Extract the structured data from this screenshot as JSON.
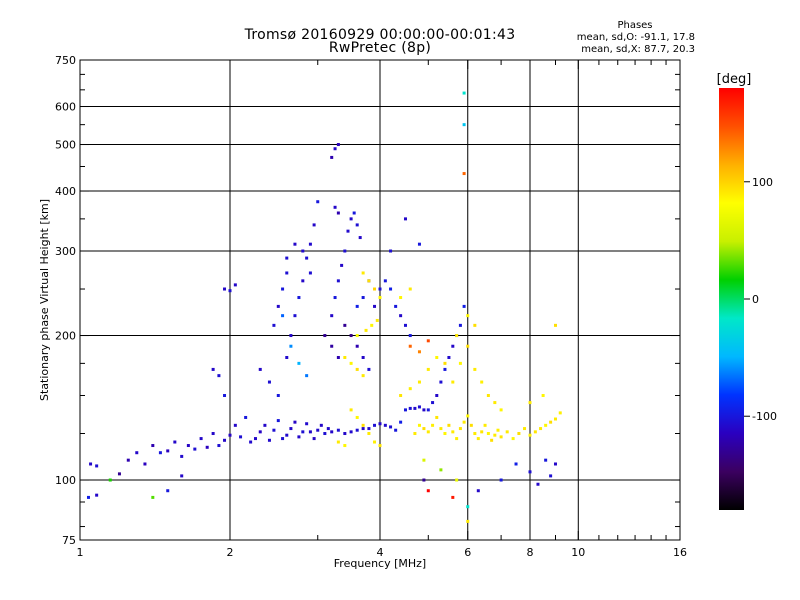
{
  "header": {
    "title_line1": "Tromsø 20160929 00:00:00-00:01:43",
    "title_line2": "RwPretec (8p)"
  },
  "stats": {
    "heading": "Phases",
    "o_line": "mean, sd,O: -91.1, 17.8",
    "x_line": "mean, sd,X: 87.7, 20.3"
  },
  "colorbar": {
    "unit": "[deg]",
    "ticks": [
      {
        "value": 100,
        "label": "100"
      },
      {
        "value": 0,
        "label": "0"
      },
      {
        "value": -100,
        "label": "-100"
      }
    ],
    "range": [
      -180,
      180
    ],
    "gradient": [
      "#000000",
      "#3b0060",
      "#2a00c0",
      "#0033ff",
      "#00b8ff",
      "#00e8c8",
      "#00d000",
      "#c8f000",
      "#ffff00",
      "#ffb000",
      "#ff5000",
      "#ff0000"
    ]
  },
  "chart_data": {
    "type": "scatter",
    "xlabel": "Frequency [MHz]",
    "ylabel": "Stationary phase Virtual Height [km]",
    "xscale": "log",
    "yscale": "log",
    "xlim": [
      1,
      16
    ],
    "ylim": [
      75,
      750
    ],
    "x_ticks": [
      1,
      2,
      4,
      6,
      8,
      10,
      16
    ],
    "x_minor_ticks": [
      3,
      5,
      7,
      9,
      11,
      12,
      13,
      14,
      15
    ],
    "y_ticks": [
      75,
      100,
      200,
      300,
      400,
      500,
      600,
      750
    ],
    "y_minor_ticks": [
      80,
      90,
      125,
      150,
      175,
      250,
      350,
      450,
      550,
      650,
      700
    ],
    "x_grid": [
      2,
      4,
      6,
      8,
      10
    ],
    "y_grid": [
      100,
      200,
      300,
      400,
      500,
      600
    ],
    "series": [
      {
        "points": [
          [
            1.05,
            108,
            -110
          ],
          [
            1.08,
            107,
            -105
          ],
          [
            1.04,
            92,
            -95
          ],
          [
            1.08,
            93,
            -110
          ],
          [
            1.2,
            103,
            -130
          ],
          [
            1.25,
            110,
            -120
          ],
          [
            1.3,
            114,
            -110
          ],
          [
            1.35,
            108,
            -115
          ],
          [
            1.4,
            118,
            -120
          ],
          [
            1.45,
            114,
            -100
          ],
          [
            1.5,
            115,
            -115
          ],
          [
            1.55,
            120,
            -110
          ],
          [
            1.6,
            112,
            -108
          ],
          [
            1.65,
            118,
            -112
          ],
          [
            1.7,
            116,
            -105
          ],
          [
            1.75,
            122,
            -110
          ],
          [
            1.8,
            117,
            -115
          ],
          [
            1.85,
            125,
            -110
          ],
          [
            1.9,
            118,
            -105
          ],
          [
            1.95,
            121,
            -110
          ],
          [
            2.0,
            124,
            -112
          ],
          [
            2.05,
            130,
            -110
          ],
          [
            2.1,
            123,
            -105
          ],
          [
            2.15,
            135,
            -100
          ],
          [
            2.2,
            120,
            -108
          ],
          [
            2.25,
            122,
            -110
          ],
          [
            2.3,
            126,
            -112
          ],
          [
            2.35,
            130,
            -110
          ],
          [
            2.4,
            121,
            -108
          ],
          [
            2.45,
            127,
            -105
          ],
          [
            2.5,
            133,
            -100
          ],
          [
            2.55,
            122,
            -105
          ],
          [
            2.6,
            124,
            -108
          ],
          [
            2.65,
            128,
            -110
          ],
          [
            2.7,
            132,
            -112
          ],
          [
            2.75,
            123,
            -110
          ],
          [
            2.8,
            126,
            -105
          ],
          [
            2.85,
            131,
            -108
          ],
          [
            2.9,
            126,
            -110
          ],
          [
            2.95,
            122,
            -112
          ],
          [
            3.0,
            127,
            -108
          ],
          [
            3.05,
            130,
            -110
          ],
          [
            3.1,
            125,
            -105
          ],
          [
            3.15,
            128,
            -108
          ],
          [
            3.2,
            126,
            -110
          ],
          [
            3.3,
            127,
            -105
          ],
          [
            3.4,
            125,
            -110
          ],
          [
            3.5,
            126,
            -108
          ],
          [
            3.6,
            127,
            -105
          ],
          [
            3.7,
            128,
            -110
          ],
          [
            3.8,
            128,
            -108
          ],
          [
            3.9,
            130,
            -105
          ],
          [
            4.0,
            131,
            -110
          ],
          [
            4.1,
            130,
            -108
          ],
          [
            4.2,
            129,
            -105
          ],
          [
            4.3,
            127,
            -100
          ],
          [
            4.4,
            132,
            -95
          ],
          [
            4.5,
            140,
            -100
          ],
          [
            4.6,
            141,
            -105
          ],
          [
            4.7,
            141,
            -108
          ],
          [
            4.8,
            142,
            -105
          ],
          [
            4.9,
            140,
            -110
          ],
          [
            5.0,
            140,
            -100
          ],
          [
            5.1,
            145,
            -105
          ],
          [
            5.2,
            150,
            -110
          ],
          [
            5.3,
            160,
            -105
          ],
          [
            5.4,
            170,
            -100
          ],
          [
            5.5,
            180,
            -108
          ],
          [
            5.6,
            190,
            -110
          ],
          [
            5.7,
            200,
            -105
          ],
          [
            5.8,
            210,
            -100
          ],
          [
            5.9,
            230,
            -95
          ],
          [
            2.3,
            170,
            -110
          ],
          [
            2.4,
            160,
            -105
          ],
          [
            2.5,
            150,
            -100
          ],
          [
            2.6,
            180,
            -108
          ],
          [
            2.45,
            210,
            -105
          ],
          [
            2.5,
            230,
            -110
          ],
          [
            2.55,
            250,
            -100
          ],
          [
            2.6,
            270,
            -105
          ],
          [
            2.65,
            200,
            -110
          ],
          [
            2.7,
            220,
            -105
          ],
          [
            2.75,
            240,
            -100
          ],
          [
            2.8,
            260,
            -110
          ],
          [
            2.85,
            290,
            -105
          ],
          [
            2.9,
            310,
            -108
          ],
          [
            2.95,
            340,
            -110
          ],
          [
            3.0,
            380,
            -100
          ],
          [
            2.6,
            290,
            -105
          ],
          [
            2.7,
            310,
            -110
          ],
          [
            2.8,
            300,
            -108
          ],
          [
            2.9,
            270,
            -105
          ],
          [
            2.55,
            220,
            -70
          ],
          [
            2.65,
            190,
            -60
          ],
          [
            2.75,
            175,
            -50
          ],
          [
            2.85,
            165,
            -65
          ],
          [
            3.2,
            220,
            -110
          ],
          [
            3.25,
            240,
            -100
          ],
          [
            3.3,
            260,
            -105
          ],
          [
            3.35,
            280,
            -110
          ],
          [
            3.4,
            300,
            -105
          ],
          [
            3.45,
            330,
            -108
          ],
          [
            3.5,
            350,
            -110
          ],
          [
            3.55,
            360,
            -100
          ],
          [
            3.6,
            340,
            -105
          ],
          [
            3.65,
            320,
            -110
          ],
          [
            3.3,
            360,
            -120
          ],
          [
            3.25,
            370,
            -110
          ],
          [
            3.2,
            470,
            -120
          ],
          [
            3.25,
            490,
            -110
          ],
          [
            3.3,
            500,
            -115
          ],
          [
            3.1,
            200,
            -130
          ],
          [
            3.2,
            190,
            -125
          ],
          [
            3.3,
            180,
            -120
          ],
          [
            3.4,
            210,
            -130
          ],
          [
            3.5,
            200,
            -135
          ],
          [
            3.6,
            190,
            -120
          ],
          [
            3.7,
            180,
            -110
          ],
          [
            3.8,
            170,
            -105
          ],
          [
            3.9,
            230,
            -110
          ],
          [
            4.0,
            250,
            -105
          ],
          [
            4.1,
            260,
            -100
          ],
          [
            4.2,
            250,
            -95
          ],
          [
            4.3,
            230,
            -100
          ],
          [
            4.4,
            220,
            -110
          ],
          [
            4.5,
            210,
            -105
          ],
          [
            4.6,
            200,
            -100
          ],
          [
            3.6,
            230,
            -95
          ],
          [
            3.7,
            240,
            -100
          ],
          [
            3.8,
            260,
            -105
          ],
          [
            1.95,
            250,
            -110
          ],
          [
            2.0,
            248,
            -105
          ],
          [
            2.05,
            255,
            -110
          ],
          [
            1.85,
            170,
            -110
          ],
          [
            1.9,
            165,
            -105
          ],
          [
            1.95,
            150,
            -100
          ],
          [
            4.5,
            350,
            -110
          ],
          [
            4.2,
            300,
            -105
          ],
          [
            4.8,
            310,
            -100
          ],
          [
            5.9,
            550,
            -40
          ],
          [
            5.9,
            640,
            -20
          ],
          [
            5.9,
            435,
            140
          ],
          [
            3.7,
            270,
            90
          ],
          [
            3.8,
            260,
            95
          ],
          [
            3.9,
            250,
            100
          ],
          [
            4.0,
            240,
            85
          ],
          [
            3.6,
            200,
            80
          ],
          [
            3.75,
            205,
            90
          ],
          [
            3.85,
            210,
            85
          ],
          [
            3.95,
            215,
            90
          ],
          [
            3.4,
            180,
            90
          ],
          [
            3.5,
            175,
            85
          ],
          [
            3.6,
            170,
            95
          ],
          [
            3.7,
            165,
            90
          ],
          [
            3.5,
            140,
            90
          ],
          [
            3.6,
            135,
            85
          ],
          [
            3.7,
            130,
            95
          ],
          [
            3.8,
            125,
            90
          ],
          [
            3.9,
            120,
            88
          ],
          [
            4.0,
            118,
            92
          ],
          [
            3.3,
            120,
            90
          ],
          [
            3.4,
            118,
            85
          ],
          [
            4.7,
            125,
            90
          ],
          [
            4.8,
            130,
            85
          ],
          [
            4.9,
            128,
            95
          ],
          [
            5.0,
            126,
            90
          ],
          [
            5.1,
            130,
            88
          ],
          [
            5.2,
            135,
            92
          ],
          [
            5.3,
            128,
            90
          ],
          [
            5.4,
            125,
            85
          ],
          [
            5.5,
            130,
            95
          ],
          [
            5.6,
            126,
            90
          ],
          [
            5.7,
            122,
            88
          ],
          [
            5.8,
            128,
            92
          ],
          [
            5.9,
            132,
            90
          ],
          [
            6.0,
            136,
            85
          ],
          [
            6.1,
            130,
            95
          ],
          [
            6.2,
            125,
            90
          ],
          [
            6.3,
            122,
            88
          ],
          [
            6.4,
            126,
            92
          ],
          [
            6.5,
            130,
            90
          ],
          [
            6.6,
            125,
            85
          ],
          [
            6.7,
            121,
            95
          ],
          [
            6.8,
            124,
            90
          ],
          [
            6.9,
            127,
            88
          ],
          [
            7.0,
            123,
            92
          ],
          [
            7.2,
            126,
            90
          ],
          [
            7.4,
            122,
            85
          ],
          [
            7.6,
            125,
            95
          ],
          [
            7.8,
            128,
            90
          ],
          [
            8.0,
            124,
            88
          ],
          [
            8.2,
            126,
            92
          ],
          [
            8.4,
            128,
            90
          ],
          [
            8.6,
            130,
            85
          ],
          [
            8.8,
            132,
            95
          ],
          [
            9.0,
            134,
            90
          ],
          [
            9.2,
            138,
            88
          ],
          [
            5.6,
            160,
            90
          ],
          [
            5.8,
            175,
            85
          ],
          [
            6.0,
            190,
            95
          ],
          [
            6.2,
            170,
            90
          ],
          [
            6.4,
            160,
            88
          ],
          [
            6.6,
            150,
            92
          ],
          [
            6.8,
            145,
            90
          ],
          [
            7.0,
            140,
            85
          ],
          [
            5.7,
            200,
            90
          ],
          [
            6.0,
            220,
            85
          ],
          [
            6.2,
            210,
            95
          ],
          [
            5.0,
            170,
            90
          ],
          [
            5.2,
            180,
            85
          ],
          [
            5.4,
            175,
            95
          ],
          [
            4.8,
            160,
            90
          ],
          [
            4.6,
            155,
            88
          ],
          [
            4.4,
            150,
            92
          ],
          [
            4.6,
            250,
            90
          ],
          [
            4.4,
            240,
            85
          ],
          [
            8.0,
            145,
            90
          ],
          [
            8.5,
            150,
            85
          ],
          [
            9.0,
            210,
            95
          ],
          [
            4.6,
            190,
            140
          ],
          [
            4.8,
            185,
            130
          ],
          [
            5.0,
            195,
            150
          ],
          [
            4.9,
            110,
            60
          ],
          [
            5.3,
            105,
            40
          ],
          [
            5.7,
            100,
            70
          ],
          [
            5.0,
            95,
            180
          ],
          [
            5.6,
            92,
            170
          ],
          [
            6.0,
            88,
            -20
          ],
          [
            6.0,
            82,
            90
          ],
          [
            1.4,
            92,
            30
          ],
          [
            4.9,
            100,
            -130
          ],
          [
            6.3,
            95,
            -110
          ],
          [
            7.0,
            100,
            -100
          ],
          [
            7.5,
            108,
            -95
          ],
          [
            8.0,
            104,
            -105
          ],
          [
            8.3,
            98,
            -110
          ],
          [
            8.6,
            110,
            -100
          ],
          [
            8.8,
            102,
            -105
          ],
          [
            9.0,
            108,
            -110
          ],
          [
            1.15,
            100,
            20
          ],
          [
            1.5,
            95,
            -100
          ],
          [
            1.6,
            102,
            -110
          ]
        ]
      }
    ]
  }
}
